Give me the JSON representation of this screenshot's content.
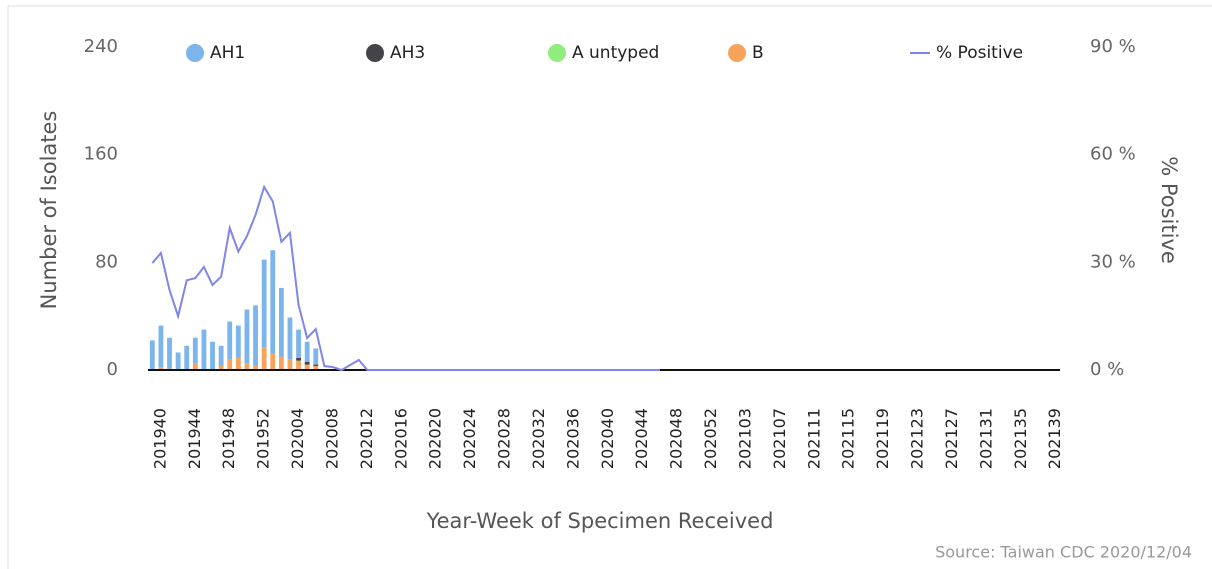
{
  "chart_data": {
    "type": "bar",
    "x_label": "Year-Week of Specimen Received",
    "y_label": "Number of Isolates",
    "y2_label": "% Positive",
    "source": "Source: Taiwan CDC 2020/12/04",
    "stacked": true,
    "categories": [
      null,
      "201940",
      null,
      null,
      null,
      "201944",
      null,
      null,
      null,
      "201948",
      null,
      null,
      null,
      "201952",
      null,
      null,
      null,
      "202004",
      null,
      null,
      null,
      "202008",
      null,
      null,
      null,
      "202012",
      null,
      null,
      null,
      "202016",
      null,
      null,
      null,
      "202020",
      null,
      null,
      null,
      "202024",
      null,
      null,
      null,
      "202028",
      null,
      null,
      null,
      "202032",
      null,
      null,
      null,
      "202036",
      null,
      null,
      null,
      "202040",
      null,
      null,
      null,
      "202044",
      null,
      null,
      null,
      "202048",
      null,
      null,
      null,
      "202052",
      null,
      null,
      null,
      "202103",
      null,
      null,
      null,
      "202107",
      null,
      null,
      null,
      "202111",
      null,
      null,
      null,
      "202115",
      null,
      null,
      null,
      "202119",
      null,
      null,
      null,
      "202123",
      null,
      null,
      null,
      "202127",
      null,
      null,
      null,
      "202131",
      null,
      null,
      null,
      "202135",
      null,
      null,
      null,
      "202139"
    ],
    "series": [
      {
        "name": "AH1",
        "color": "#7cb5ec",
        "values": [
          22,
          31,
          23,
          13,
          18,
          19,
          30,
          21,
          15,
          28,
          24,
          40,
          45,
          65,
          77,
          51,
          31,
          21,
          15,
          12,
          0,
          0,
          0,
          0,
          0,
          0,
          0,
          0,
          0,
          0,
          0,
          0,
          0,
          0,
          0,
          0,
          0,
          0,
          0,
          0,
          0,
          0,
          0,
          0,
          0,
          0,
          0,
          0,
          0,
          0,
          0,
          0,
          0,
          0,
          0,
          0,
          0,
          0,
          0,
          0,
          null,
          null,
          null,
          null,
          null,
          null,
          null,
          null,
          null,
          null,
          null,
          null,
          null,
          null,
          null,
          null,
          null,
          null,
          null,
          null,
          null,
          null,
          null,
          null,
          null,
          null,
          null,
          null,
          null,
          null,
          null,
          null,
          null,
          null,
          null,
          null,
          null,
          null,
          null,
          null,
          null,
          null,
          null,
          null,
          null,
          null
        ]
      },
      {
        "name": "AH3",
        "color": "#434348",
        "values": [
          0,
          0,
          0,
          0,
          0,
          0,
          0,
          0,
          0,
          0,
          0,
          0,
          0,
          0,
          0,
          0,
          0,
          2,
          2,
          1,
          0,
          0,
          0,
          0,
          0,
          0,
          0,
          0,
          0,
          0,
          0,
          0,
          0,
          0,
          0,
          0,
          0,
          0,
          0,
          0,
          0,
          0,
          0,
          0,
          0,
          0,
          0,
          0,
          0,
          0,
          0,
          0,
          0,
          0,
          0,
          0,
          0,
          0,
          0,
          0,
          null,
          null,
          null,
          null,
          null,
          null,
          null,
          null,
          null,
          null,
          null,
          null,
          null,
          null,
          null,
          null,
          null,
          null,
          null,
          null,
          null,
          null,
          null,
          null,
          null,
          null,
          null,
          null,
          null,
          null,
          null,
          null,
          null,
          null,
          null,
          null,
          null,
          null,
          null,
          null,
          null,
          null,
          null,
          null,
          null,
          null
        ]
      },
      {
        "name": "A untyped",
        "color": "#90ed7d",
        "values": [
          0,
          0,
          0,
          0,
          0,
          0,
          0,
          0,
          0,
          0,
          0,
          0,
          0,
          0,
          0,
          0,
          0,
          0,
          0,
          0,
          0,
          0,
          0,
          0,
          0,
          0,
          0,
          0,
          0,
          0,
          0,
          0,
          0,
          0,
          0,
          0,
          0,
          0,
          0,
          0,
          0,
          0,
          0,
          0,
          0,
          0,
          0,
          0,
          0,
          0,
          0,
          0,
          0,
          0,
          0,
          0,
          0,
          0,
          0,
          0,
          null,
          null,
          null,
          null,
          null,
          null,
          null,
          null,
          null,
          null,
          null,
          null,
          null,
          null,
          null,
          null,
          null,
          null,
          null,
          null,
          null,
          null,
          null,
          null,
          null,
          null,
          null,
          null,
          null,
          null,
          null,
          null,
          null,
          null,
          null,
          null,
          null,
          null,
          null,
          null,
          null,
          null,
          null,
          null,
          null,
          null
        ]
      },
      {
        "name": "B",
        "color": "#f7a35c",
        "values": [
          0,
          2,
          1,
          0,
          0,
          5,
          0,
          0,
          3,
          8,
          9,
          5,
          3,
          17,
          12,
          10,
          8,
          7,
          4,
          3,
          0,
          0,
          0,
          0,
          0,
          0,
          0,
          0,
          0,
          0,
          0,
          0,
          0,
          0,
          0,
          0,
          0,
          0,
          0,
          0,
          0,
          0,
          0,
          0,
          0,
          0,
          0,
          0,
          0,
          0,
          0,
          0,
          0,
          0,
          0,
          0,
          0,
          0,
          0,
          0,
          null,
          null,
          null,
          null,
          null,
          null,
          null,
          null,
          null,
          null,
          null,
          null,
          null,
          null,
          null,
          null,
          null,
          null,
          null,
          null,
          null,
          null,
          null,
          null,
          null,
          null,
          null,
          null,
          null,
          null,
          null,
          null,
          null,
          null,
          null,
          null,
          null,
          null,
          null,
          null,
          null,
          null,
          null,
          null,
          null,
          null
        ]
      },
      {
        "name": "% Positive",
        "type": "line",
        "axis": "y2",
        "color": "#8085e9",
        "values": [
          29.8,
          32.6,
          22.3,
          15,
          25,
          25.6,
          28.7,
          23.7,
          26,
          39.6,
          33,
          37.3,
          43.2,
          51,
          47,
          35.7,
          38.2,
          18.1,
          8.9,
          11.4,
          1.1,
          0.8,
          0,
          1.4,
          2.8,
          0,
          0,
          0,
          0,
          0,
          0,
          0,
          0,
          0,
          0,
          0,
          0,
          0,
          0,
          0,
          0,
          0,
          0,
          0,
          0,
          0,
          0,
          0,
          0,
          0,
          0,
          0,
          0,
          0,
          0,
          0,
          0,
          0,
          0,
          0,
          null,
          null,
          null,
          null,
          null,
          null,
          null,
          null,
          null,
          null,
          null,
          null,
          null,
          null,
          null,
          null,
          null,
          null,
          null,
          null,
          null,
          null,
          null,
          null,
          null,
          null,
          null,
          null,
          null,
          null,
          null,
          null,
          null,
          null,
          null,
          null,
          null,
          null,
          null,
          null,
          null,
          null,
          null,
          null,
          null,
          null
        ]
      }
    ],
    "ylim": [
      0,
      240
    ],
    "yticks": [
      0,
      80,
      160,
      240
    ],
    "y2lim": [
      0,
      90
    ],
    "y2ticks": [
      {
        "value": 0,
        "label": "0 %"
      },
      {
        "value": 30,
        "label": "30 %"
      },
      {
        "value": 60,
        "label": "60 %"
      },
      {
        "value": 90,
        "label": "90 %"
      }
    ],
    "legend": "top"
  }
}
